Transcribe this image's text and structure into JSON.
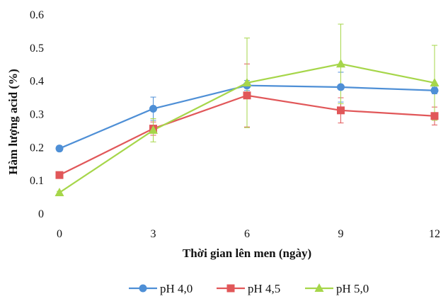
{
  "chart_data": {
    "type": "line",
    "title": "",
    "xlabel": "Thời gian lên men (ngày)",
    "ylabel": "Hàm lượng acid (%)",
    "x": [
      0,
      3,
      6,
      9,
      12
    ],
    "x_tick_labels": [
      "0",
      "3",
      "6",
      "9",
      "12"
    ],
    "y_tick_labels": [
      "0",
      "0.1",
      "0.2",
      "0.3",
      "0.4",
      "0.5",
      "0.6"
    ],
    "ylim": [
      0,
      0.6
    ],
    "xlim": [
      0,
      12
    ],
    "grid": false,
    "legend_position": "bottom",
    "series": [
      {
        "name": "pH  4,0",
        "color": "#4e8fd6",
        "marker": "circle",
        "values": [
          0.195,
          0.315,
          0.385,
          0.38,
          0.37
        ],
        "errors": [
          0.008,
          0.035,
          0.015,
          0.045,
          0.01
        ]
      },
      {
        "name": "pH  4,5",
        "color": "#e15759",
        "marker": "square",
        "values": [
          0.115,
          0.255,
          0.355,
          0.31,
          0.293
        ],
        "errors": [
          0.007,
          0.02,
          0.095,
          0.038,
          0.027
        ]
      },
      {
        "name": "pH  5,0",
        "color": "#a6d64a",
        "marker": "triangle",
        "values": [
          0.062,
          0.25,
          0.393,
          0.45,
          0.393
        ],
        "errors": [
          0.004,
          0.035,
          0.135,
          0.12,
          0.113
        ]
      }
    ]
  }
}
